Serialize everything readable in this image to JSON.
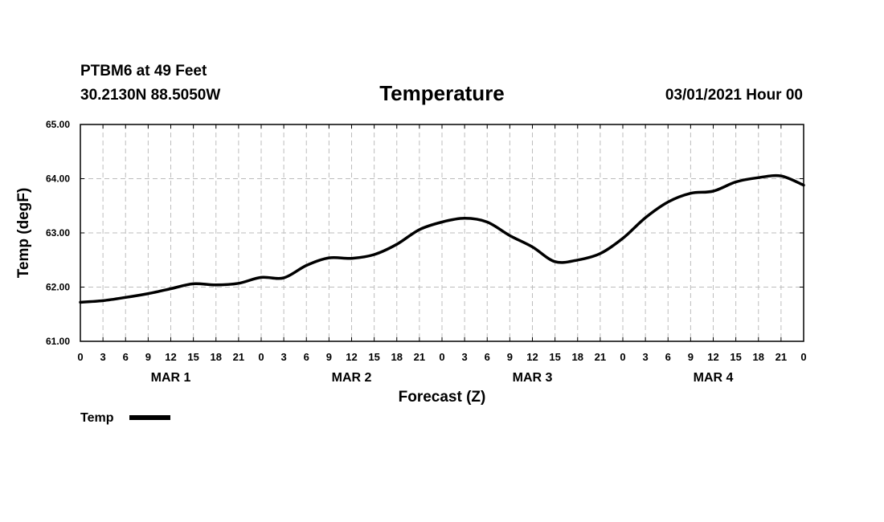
{
  "header": {
    "station": "PTBM6 at 49 Feet",
    "coords": "30.2130N 88.5050W",
    "title": "Temperature",
    "datetime": "03/01/2021 Hour 00"
  },
  "legend": {
    "label": "Temp",
    "color": "#000000"
  },
  "chart_data": {
    "type": "line",
    "title": "Temperature",
    "xlabel": "Forecast (Z)",
    "ylabel": "Temp (degF)",
    "xlim": [
      0,
      96
    ],
    "ylim": [
      61.0,
      65.0
    ],
    "grid": true,
    "x_tick_labels": [
      "0",
      "3",
      "6",
      "9",
      "12",
      "15",
      "18",
      "21",
      "0",
      "3",
      "6",
      "9",
      "12",
      "15",
      "18",
      "21",
      "0",
      "3",
      "6",
      "9",
      "12",
      "15",
      "18",
      "21",
      "0",
      "3",
      "6",
      "9",
      "12",
      "15",
      "18",
      "21",
      "0"
    ],
    "y_tick_labels": [
      "61.00",
      "62.00",
      "63.00",
      "64.00",
      "65.00"
    ],
    "day_labels": [
      "MAR 1",
      "MAR 2",
      "MAR 3",
      "MAR 4"
    ],
    "series": [
      {
        "name": "Temp",
        "color": "#000000",
        "x": [
          0,
          3,
          6,
          9,
          12,
          15,
          18,
          21,
          24,
          27,
          30,
          33,
          36,
          39,
          42,
          45,
          48,
          51,
          54,
          57,
          60,
          63,
          66,
          69,
          72,
          75,
          78,
          81,
          84,
          87,
          90,
          93,
          96
        ],
        "y": [
          61.72,
          61.75,
          61.81,
          61.88,
          61.97,
          62.06,
          62.04,
          62.07,
          62.18,
          62.17,
          62.4,
          62.54,
          62.53,
          62.6,
          62.79,
          63.06,
          63.2,
          63.27,
          63.2,
          62.95,
          62.74,
          62.47,
          62.5,
          62.62,
          62.9,
          63.28,
          63.57,
          63.73,
          63.77,
          63.94,
          64.02,
          64.05,
          63.88
        ]
      }
    ]
  }
}
